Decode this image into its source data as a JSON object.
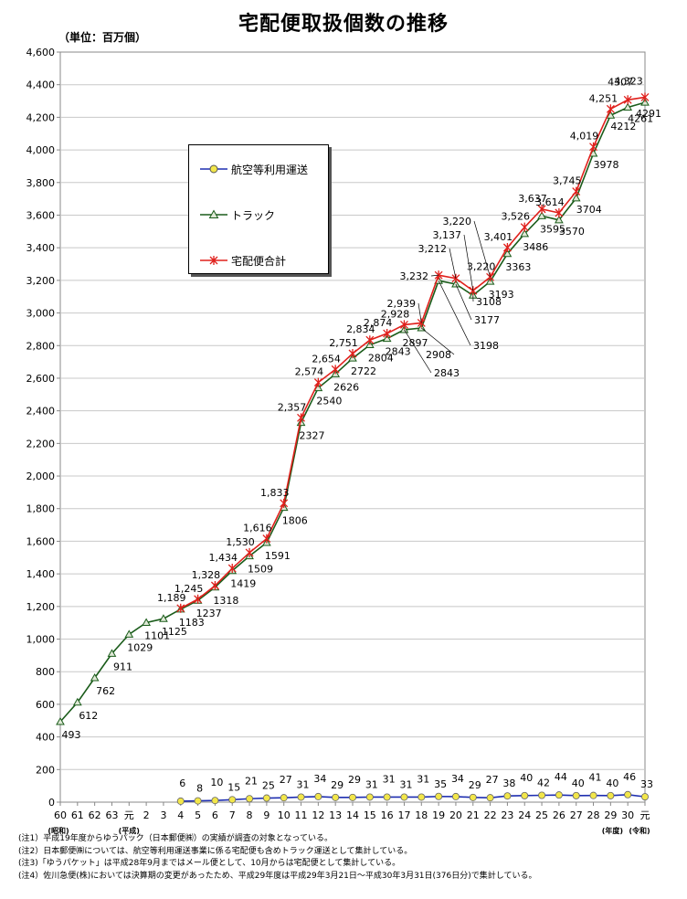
{
  "chart_data": {
    "type": "line",
    "title": "宅配便取扱個数の推移",
    "unit_label": "（単位：百万個）",
    "ylim": [
      0,
      4600
    ],
    "y_ticks": [
      "0",
      "200",
      "400",
      "600",
      "800",
      "1,000",
      "1,200",
      "1,400",
      "1,600",
      "1,800",
      "2,000",
      "2,200",
      "2,400",
      "2,600",
      "2,800",
      "3,000",
      "3,200",
      "3,400",
      "3,600",
      "3,800",
      "4,000",
      "4,200",
      "4,400",
      "4,600"
    ],
    "categories": [
      "60",
      "61",
      "62",
      "63",
      "元",
      "2",
      "3",
      "4",
      "5",
      "6",
      "7",
      "8",
      "9",
      "10",
      "11",
      "12",
      "13",
      "14",
      "15",
      "16",
      "17",
      "18",
      "19",
      "20",
      "21",
      "22",
      "23",
      "24",
      "25",
      "26",
      "27",
      "28",
      "29",
      "30",
      "元"
    ],
    "era_labels": [
      "(昭和)",
      "(平成)",
      "(年度)",
      "(令和)"
    ],
    "grid": true,
    "legend_position": "upper-left",
    "series": [
      {
        "name": "航空等利用運送",
        "color": "#1f2fb0",
        "marker": "circle",
        "values": [
          null,
          null,
          null,
          null,
          null,
          null,
          null,
          6,
          8,
          10,
          15,
          21,
          25,
          27,
          31,
          34,
          29,
          29,
          31,
          31,
          31,
          31,
          35,
          34,
          29,
          27,
          38,
          40,
          42,
          44,
          40,
          41,
          40,
          46,
          33
        ],
        "labels": [
          null,
          null,
          null,
          null,
          null,
          null,
          null,
          "6",
          "8",
          "10",
          "15",
          "21",
          "25",
          "27",
          "31",
          "34",
          "29",
          "29",
          "31",
          "31",
          "31",
          "31",
          "35",
          "34",
          "29",
          "27",
          "38",
          "40",
          "42",
          "44",
          "40",
          "41",
          "40",
          "46",
          "33"
        ]
      },
      {
        "name": "トラック",
        "color": "#1a5c1a",
        "marker": "triangle",
        "values": [
          493,
          612,
          762,
          911,
          1029,
          1101,
          1125,
          1183,
          1237,
          1318,
          1419,
          1509,
          1591,
          1806,
          2327,
          2540,
          2626,
          2722,
          2804,
          2843,
          2897,
          2908,
          3198,
          3177,
          3108,
          3193,
          3363,
          3486,
          3595,
          3570,
          3704,
          3978,
          4212,
          4261,
          4291
        ],
        "labels": [
          "493",
          "612",
          "762",
          "911",
          "1029",
          "1101",
          "1125",
          "1183",
          "1237",
          "1318",
          "1419",
          "1509",
          "1591",
          "1806",
          "2327",
          "2540",
          "2626",
          "2722",
          "2804",
          "2843",
          "2897",
          "2908",
          "3198",
          "3177",
          "3108",
          "3193",
          "3363",
          "3486",
          "3595",
          "3570",
          "3704",
          "3978",
          "4212",
          "4261",
          "4291"
        ]
      },
      {
        "name": "宅配便合計",
        "color": "#e0201c",
        "marker": "star",
        "values": [
          null,
          null,
          null,
          null,
          null,
          null,
          null,
          1189,
          1245,
          1328,
          1434,
          1530,
          1616,
          1833,
          2357,
          2574,
          2654,
          2751,
          2834,
          2874,
          2928,
          2939,
          3232,
          3212,
          3137,
          3220,
          3401,
          3526,
          3637,
          3614,
          3745,
          4019,
          4251,
          4307,
          4323
        ],
        "labels": [
          null,
          null,
          null,
          null,
          null,
          null,
          null,
          "1,189",
          "1,245",
          "1,328",
          "1,434",
          "1,530",
          "1,616",
          "1,833",
          "2,357",
          "2,574",
          "2,654",
          "2,751",
          "2,834",
          "2,874",
          "2,928",
          "2,939",
          "3,232",
          "3,212",
          "3,137",
          "3,220",
          "3,401",
          "3,526",
          "3,637",
          "3,614",
          "3,745",
          "4,019",
          "4,251",
          "4307",
          "4,323"
        ]
      }
    ]
  },
  "notes": [
    "(注1）平成19年度からゆうパック（日本郵便㈱）の実績が調査の対象となっている。",
    "(注2）日本郵便㈱については、航空等利用運送事業に係る宅配便も含めトラック運送として集計している。",
    "(注3)「ゆうパケット」は平成28年9月まではメール便として、10月からは宅配便として集計している。",
    "(注4）佐川急便(株)においては決算期の変更があったため、平成29年度は平成29年3月21日～平成30年3月31日(376日分)で集計している。"
  ]
}
